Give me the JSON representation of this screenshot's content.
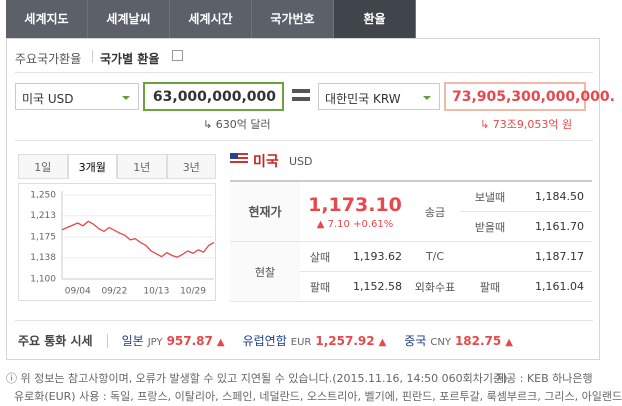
{
  "tabs": [
    "세계지도",
    "세계날씨",
    "세계시간",
    "국가번호",
    "환율"
  ],
  "active_tab": 4,
  "subtabs": [
    "주요국가환율",
    "국가별 환율"
  ],
  "converter": {
    "from_currency": "미국 USD",
    "amount": "63,000,000,000",
    "amount_words": "630억 달러",
    "to_currency": "대한민국 KRW",
    "result": "73,905,300,000,000.",
    "result_words": "73조9,053억 원"
  },
  "mini_chart": {
    "type": "line",
    "periods": [
      "1일",
      "3개월",
      "1년",
      "3년"
    ],
    "active_period": 1,
    "categories": [
      null,
      null,
      null,
      "09/04",
      null,
      null,
      null,
      null,
      null,
      null,
      "09/22",
      null,
      null,
      null,
      null,
      null,
      null,
      null,
      "10/13",
      null,
      null,
      null,
      null,
      null,
      null,
      "10/29",
      null,
      null,
      null,
      null
    ],
    "values": [
      1188,
      1192,
      1196,
      1200,
      1195,
      1203,
      1198,
      1190,
      1185,
      1192,
      1187,
      1182,
      1178,
      1170,
      1172,
      1165,
      1160,
      1150,
      1145,
      1140,
      1147,
      1142,
      1139,
      1144,
      1150,
      1146,
      1152,
      1148,
      1160,
      1165
    ],
    "ylim": [
      1100,
      1250
    ],
    "yticks": [
      {
        "value": 1250,
        "label": "1,250"
      },
      {
        "value": 1213,
        "label": "1,213"
      },
      {
        "value": 1175,
        "label": "1,175"
      },
      {
        "value": 1138,
        "label": "1,138"
      },
      {
        "value": 1100,
        "label": "1,100"
      }
    ],
    "color": "#e8474b"
  },
  "rate_panel": {
    "country": "미국",
    "code": "USD",
    "current_label": "현재가",
    "current": "1,173.10",
    "change": "▲ 7.10 +0.61%",
    "remit_label": "송금",
    "remit_send_label": "보낼때",
    "remit_send": "1,184.50",
    "remit_recv_label": "받을때",
    "remit_recv": "1,161.70",
    "cash_label": "현찰",
    "cash_buy_label": "살때",
    "cash_buy": "1,193.62",
    "cash_sell_label": "팔때",
    "cash_sell": "1,152.58",
    "tc_label": "T/C",
    "tc": "1,187.17",
    "check_label": "외화수표",
    "check_sell_label": "팔때",
    "check_sell": "1,161.04"
  },
  "major": {
    "title": "주요 통화 시세",
    "items": [
      {
        "name": "일본",
        "code": "JPY",
        "value": "957.87",
        "arrow": "▲"
      },
      {
        "name": "유럽연합",
        "code": "EUR",
        "value": "1,257.92",
        "arrow": "▲"
      },
      {
        "name": "중국",
        "code": "CNY",
        "value": "182.75",
        "arrow": "▲"
      }
    ]
  },
  "footer": {
    "notice": "위 정보는 참고사항이며, 오류가 발생할 수 있고 지연될 수 있습니다.(2015.11.16, 14:50 060회차기준)",
    "provider": "제공 : KEB 하나은행",
    "euro_note": "유로화(EUR) 사용 : 독일, 프랑스, 이탈리아, 스페인, 네덜란드, 오스트리아, 벨기에, 핀란드, 포르투갈, 룩셈부르크, 그리스, 아일랜드"
  }
}
